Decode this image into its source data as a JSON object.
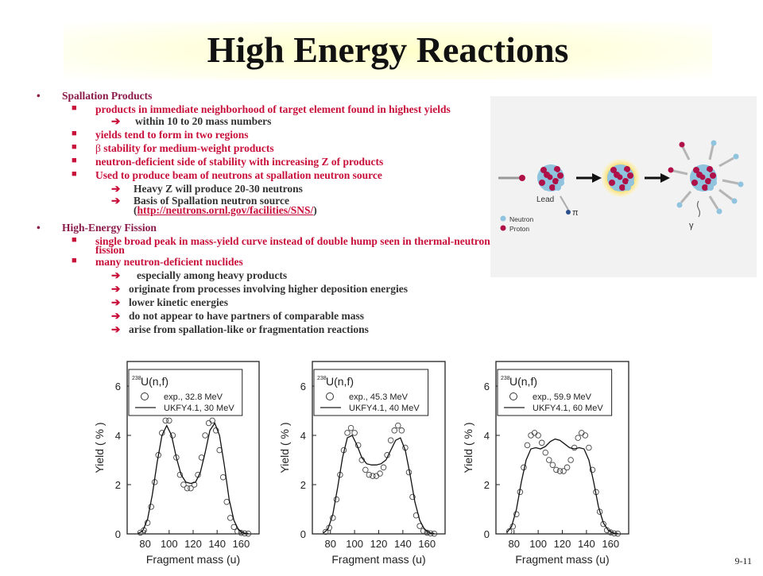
{
  "slide": {
    "title": "High Energy Reactions",
    "page_number": "9-11"
  },
  "bullets": {
    "spallation": {
      "heading": "Spallation Products",
      "item1": "products in immediate neighborhood of target element found in highest yields",
      "item1_sub1": "within 10 to 20 mass numbers",
      "item2": "yields tend to form in two regions",
      "item3_symbol": "β",
      "item3": "stability for medium-weight products",
      "item4": "neutron-deficient side of stability with increasing Z of products",
      "item5": "Used to produce beam of neutrons at spallation neutron source",
      "item5_sub1": "Heavy Z will produce 20-30 neutrons",
      "item5_sub2": "Basis of Spallation neutron source",
      "item5_sub2_link": "http://neutrons.ornl.gov/facilities/SNS/",
      "open_paren": "(",
      "close_paren": ")"
    },
    "fission": {
      "heading": "High-Energy Fission",
      "item1": "single broad peak in mass-yield curve instead of double hump seen in thermal-neutron fission",
      "item2": "many neutron-deficient nuclides",
      "item2_sub1": "especially among heavy products",
      "item2_sub2": "originate from processes involving higher deposition energies",
      "item2_sub3": "lower kinetic energies",
      "item2_sub4": "do not appear to have partners of comparable mass",
      "item2_sub5": "arise from spallation-like or fragmentation reactions"
    }
  },
  "diagram": {
    "lead_label": "Lead",
    "pi_label": "π",
    "gamma_label": "γ",
    "legend_neutron": "Neutron",
    "legend_proton": "Proton",
    "neutron_color": "#8fc3de",
    "proton_color": "#b01048"
  },
  "chart_data": [
    {
      "type": "line",
      "title_mass": "238",
      "title": "U(n,f)",
      "legend_exp": "exp., 32.8 MeV",
      "legend_calc": "UKFY4.1, 30 MeV",
      "xlabel": "Fragment mass (u)",
      "ylabel": "Yield ( % )",
      "xlim": [
        65,
        175
      ],
      "ylim": [
        0,
        7
      ],
      "xticks": [
        80,
        100,
        120,
        140,
        160
      ],
      "yticks": [
        0,
        2,
        4,
        6
      ],
      "series": [
        {
          "name": "exp., 32.8 MeV",
          "style": "circles",
          "x": [
            76,
            79,
            82,
            85,
            88,
            91,
            94,
            97,
            100,
            103,
            106,
            109,
            112,
            115,
            118,
            121,
            124,
            127,
            130,
            133,
            136,
            139,
            142,
            145,
            148,
            151,
            154,
            157,
            160,
            163,
            166
          ],
          "y": [
            0.05,
            0.15,
            0.45,
            1.1,
            2.1,
            3.2,
            4.1,
            4.6,
            4.6,
            4.0,
            3.1,
            2.4,
            2.0,
            1.85,
            1.85,
            2.0,
            2.4,
            3.1,
            4.0,
            4.5,
            4.6,
            4.2,
            3.4,
            2.3,
            1.3,
            0.65,
            0.28,
            0.1,
            0.04,
            0.02,
            0.01
          ]
        },
        {
          "name": "UKFY4.1, 30 MeV",
          "style": "line",
          "x": [
            74,
            78,
            82,
            86,
            90,
            94,
            98,
            102,
            106,
            110,
            114,
            118,
            122,
            126,
            130,
            134,
            138,
            142,
            146,
            150,
            154,
            158,
            162,
            166
          ],
          "y": [
            0.02,
            0.12,
            0.6,
            1.6,
            2.9,
            4.0,
            4.4,
            4.0,
            3.1,
            2.4,
            2.1,
            2.05,
            2.1,
            2.5,
            3.3,
            4.2,
            4.5,
            4.0,
            2.8,
            1.4,
            0.55,
            0.15,
            0.04,
            0.01
          ]
        }
      ]
    },
    {
      "type": "line",
      "title_mass": "238",
      "title": "U(n,f)",
      "legend_exp": "exp., 45.3 MeV",
      "legend_calc": "UKFY4.1, 40 MeV",
      "xlabel": "Fragment mass (u)",
      "ylabel": "Yield ( % )",
      "xlim": [
        65,
        175
      ],
      "ylim": [
        0,
        7
      ],
      "xticks": [
        80,
        100,
        120,
        140,
        160
      ],
      "yticks": [
        0,
        2,
        4,
        6
      ],
      "series": [
        {
          "name": "exp., 45.3 MeV",
          "style": "circles",
          "x": [
            76,
            79,
            82,
            85,
            88,
            91,
            94,
            97,
            100,
            103,
            106,
            109,
            112,
            115,
            118,
            121,
            124,
            127,
            130,
            133,
            136,
            139,
            142,
            145,
            148,
            151,
            154,
            157,
            160,
            163,
            166
          ],
          "y": [
            0.08,
            0.25,
            0.65,
            1.4,
            2.4,
            3.4,
            4.1,
            4.3,
            4.1,
            3.6,
            3.0,
            2.6,
            2.4,
            2.35,
            2.35,
            2.45,
            2.7,
            3.2,
            3.8,
            4.2,
            4.4,
            4.2,
            3.5,
            2.5,
            1.5,
            0.75,
            0.32,
            0.12,
            0.05,
            0.02,
            0.01
          ]
        },
        {
          "name": "UKFY4.1, 40 MeV",
          "style": "line",
          "x": [
            74,
            78,
            82,
            86,
            90,
            94,
            98,
            102,
            106,
            110,
            114,
            118,
            122,
            126,
            130,
            134,
            138,
            142,
            146,
            150,
            154,
            158,
            162,
            166
          ],
          "y": [
            0.03,
            0.2,
            0.8,
            1.9,
            3.1,
            3.9,
            4.0,
            3.6,
            3.1,
            2.85,
            2.8,
            2.8,
            2.85,
            3.0,
            3.4,
            3.8,
            3.9,
            3.4,
            2.4,
            1.3,
            0.55,
            0.18,
            0.05,
            0.01
          ]
        }
      ]
    },
    {
      "type": "line",
      "title_mass": "238",
      "title": "U(n,f)",
      "legend_exp": "exp., 59.9 MeV",
      "legend_calc": "UKFY4.1, 60 MeV",
      "xlabel": "Fragment mass (u)",
      "ylabel": "Yield ( % )",
      "xlim": [
        65,
        175
      ],
      "ylim": [
        0,
        7
      ],
      "xticks": [
        80,
        100,
        120,
        140,
        160
      ],
      "yticks": [
        0,
        2,
        4,
        6
      ],
      "series": [
        {
          "name": "exp., 59.9 MeV",
          "style": "circles",
          "x": [
            76,
            79,
            82,
            85,
            88,
            91,
            94,
            97,
            100,
            103,
            106,
            109,
            112,
            115,
            118,
            121,
            124,
            127,
            130,
            133,
            136,
            139,
            142,
            145,
            148,
            151,
            154,
            157,
            160,
            163,
            166
          ],
          "y": [
            0.1,
            0.3,
            0.8,
            1.7,
            2.7,
            3.6,
            4.0,
            4.1,
            4.0,
            3.7,
            3.3,
            3.0,
            2.8,
            2.6,
            2.55,
            2.55,
            2.7,
            3.0,
            3.5,
            3.9,
            4.1,
            4.0,
            3.5,
            2.6,
            1.7,
            0.9,
            0.4,
            0.15,
            0.06,
            0.02,
            0.01
          ]
        },
        {
          "name": "UKFY4.1, 60 MeV",
          "style": "line",
          "x": [
            74,
            78,
            82,
            86,
            90,
            94,
            98,
            102,
            106,
            110,
            114,
            118,
            122,
            126,
            130,
            134,
            138,
            142,
            146,
            150,
            154,
            158,
            162,
            166
          ],
          "y": [
            0.05,
            0.3,
            1.0,
            2.1,
            3.0,
            3.45,
            3.5,
            3.45,
            3.55,
            3.75,
            3.85,
            3.8,
            3.65,
            3.5,
            3.45,
            3.5,
            3.45,
            3.0,
            2.1,
            1.1,
            0.45,
            0.15,
            0.04,
            0.01
          ]
        }
      ]
    }
  ]
}
